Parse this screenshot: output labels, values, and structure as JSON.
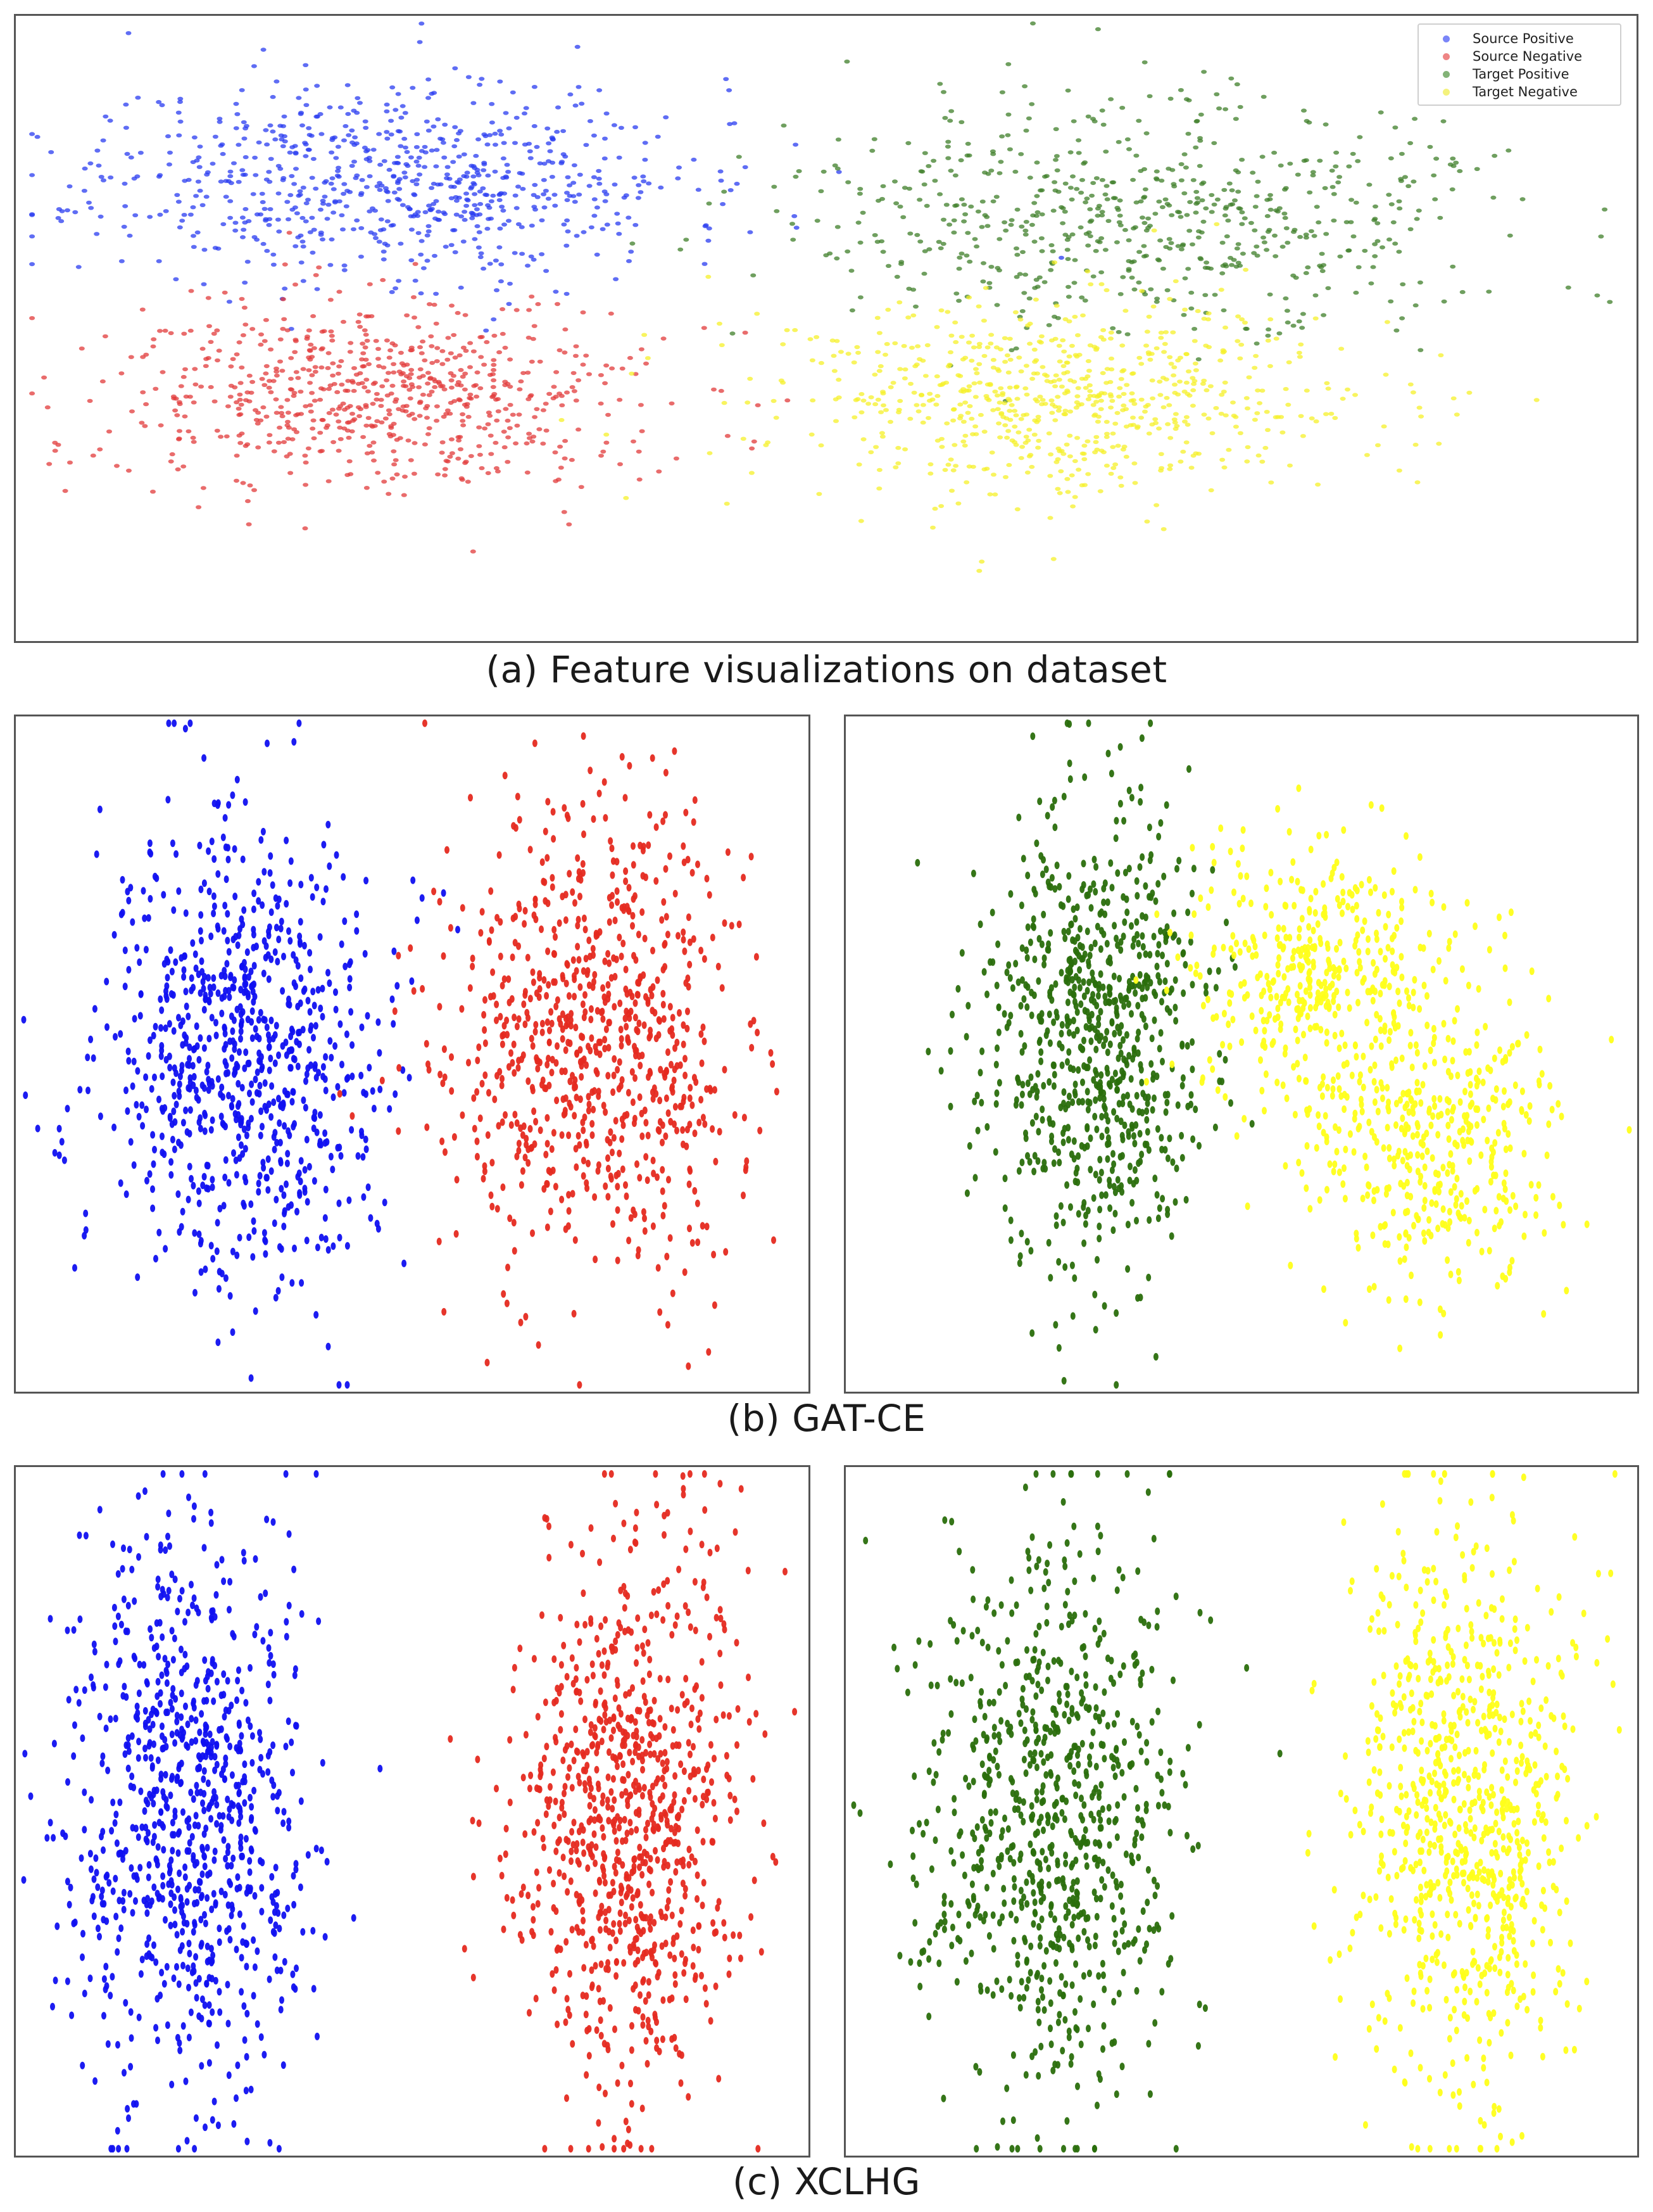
{
  "colors": {
    "source_positive": "#1f1fff",
    "source_negative": "#f03030",
    "target_positive": "#2e7d10",
    "target_negative": "#fdfa2a"
  },
  "chart_data": [
    {
      "id": "a",
      "type": "scatter",
      "title": "(a) Feature visualizations on dataset",
      "legend": {
        "placement": "top-right",
        "entries": [
          {
            "label": "Source Positive",
            "color": "#4d5cf5"
          },
          {
            "label": "Source Negative",
            "color": "#e85c5c"
          },
          {
            "label": "Target Positive",
            "color": "#5a9a4a"
          },
          {
            "label": "Target Negative",
            "color": "#f0ee50"
          }
        ]
      },
      "xlim": [
        0,
        100
      ],
      "ylim": [
        0,
        100
      ],
      "clusters": [
        {
          "series": "Source Positive",
          "color": "#2a3cf0",
          "cx": 23,
          "cy": 74,
          "sx": 9,
          "sy": 8,
          "n": 750,
          "seed": 11
        },
        {
          "series": "Source Negative",
          "color": "#e23b3b",
          "cx": 23,
          "cy": 39,
          "sx": 8,
          "sy": 8,
          "n": 700,
          "seed": 12
        },
        {
          "series": "Target Positive",
          "color": "#3f7f2a",
          "cx": 70,
          "cy": 68,
          "sx": 11,
          "sy": 9,
          "n": 650,
          "seed": 13
        },
        {
          "series": "Target Negative",
          "color": "#f6f02a",
          "cx": 65,
          "cy": 39,
          "sx": 9,
          "sy": 8,
          "n": 700,
          "seed": 14
        }
      ]
    },
    {
      "id": "b-source",
      "type": "scatter",
      "title": "(b) GAT-CE",
      "xlim": [
        0,
        100
      ],
      "ylim": [
        0,
        100
      ],
      "clusters": [
        {
          "series": "Source Positive",
          "color": "#1010f0",
          "cx": 29,
          "cy": 50,
          "sx": 9,
          "sy": 17,
          "n": 800,
          "seed": 21
        },
        {
          "series": "Source Negative",
          "color": "#e52a20",
          "cx": 73,
          "cy": 52,
          "sx": 9,
          "sy": 17,
          "n": 780,
          "seed": 22
        }
      ]
    },
    {
      "id": "b-target",
      "type": "scatter",
      "xlim": [
        0,
        100
      ],
      "ylim": [
        0,
        100
      ],
      "clusters": [
        {
          "series": "Target Positive",
          "color": "#2a6e0c",
          "cx": 31,
          "cy": 52,
          "sx": 7,
          "sy": 17,
          "n": 760,
          "seed": 23
        },
        {
          "series": "Target Negative",
          "color": "#ffff1a",
          "cx": 58,
          "cy": 62,
          "sx": 8,
          "sy": 10,
          "n": 400,
          "seed": 24
        },
        {
          "series": "Target Negative",
          "color": "#ffff1a",
          "cx": 74,
          "cy": 37,
          "sx": 8,
          "sy": 11,
          "n": 420,
          "seed": 25
        }
      ]
    },
    {
      "id": "c-source",
      "type": "scatter",
      "title": "(c) XCLHG",
      "xlim": [
        0,
        100
      ],
      "ylim": [
        0,
        100
      ],
      "clusters": [
        {
          "series": "Source Positive",
          "color": "#1010f0",
          "cx": 22,
          "cy": 50,
          "sx": 7.5,
          "sy": 20,
          "n": 850,
          "seed": 31
        },
        {
          "series": "Source Negative",
          "color": "#e52a20",
          "cx": 77,
          "cy": 49,
          "sx": 7,
          "sy": 20,
          "n": 850,
          "seed": 32
        }
      ]
    },
    {
      "id": "c-target",
      "type": "scatter",
      "xlim": [
        0,
        100
      ],
      "ylim": [
        0,
        100
      ],
      "clusters": [
        {
          "series": "Target Positive",
          "color": "#2a6e0c",
          "cx": 26,
          "cy": 50,
          "sx": 8,
          "sy": 20,
          "n": 800,
          "seed": 33
        },
        {
          "series": "Target Negative",
          "color": "#ffff1a",
          "cx": 78,
          "cy": 49,
          "sx": 7,
          "sy": 20,
          "n": 800,
          "seed": 34
        }
      ]
    }
  ]
}
